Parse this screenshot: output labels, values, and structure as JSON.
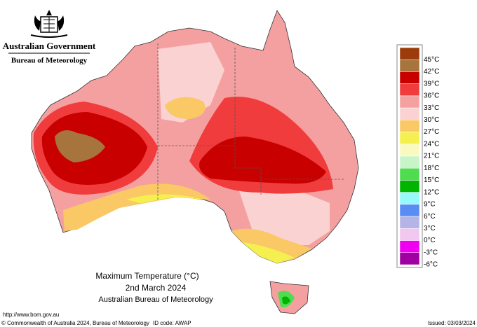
{
  "header": {
    "agency": "Australian Government",
    "bureau": "Bureau of Meteorology"
  },
  "legend": {
    "colors": [
      "#9c3c0c",
      "#a8743e",
      "#c80000",
      "#f03c3c",
      "#f5a0a0",
      "#fad2d2",
      "#fac864",
      "#f5f050",
      "#fafac0",
      "#c8f5c8",
      "#50dc50",
      "#00b400",
      "#96fafa",
      "#5a8cf5",
      "#b4b4e6",
      "#f0c8f0",
      "#f000f0",
      "#a000a0"
    ],
    "labels": [
      "45°C",
      "42°C",
      "39°C",
      "36°C",
      "33°C",
      "30°C",
      "27°C",
      "24°C",
      "21°C",
      "18°C",
      "15°C",
      "12°C",
      "9°C",
      "6°C",
      "3°C",
      "0°C",
      "-3°C",
      "-6°C"
    ]
  },
  "title": {
    "line1": "Maximum Temperature (°C)",
    "line2": "2nd March 2024",
    "line3": "Australian Bureau of Meteorology"
  },
  "footer": {
    "url": "http://www.bom.gov.au",
    "copyright": "© Commonwealth of Australia 2024, Bureau of Meteorology",
    "id": "ID code: AWAP",
    "issued": "Issued: 03/03/2024"
  }
}
